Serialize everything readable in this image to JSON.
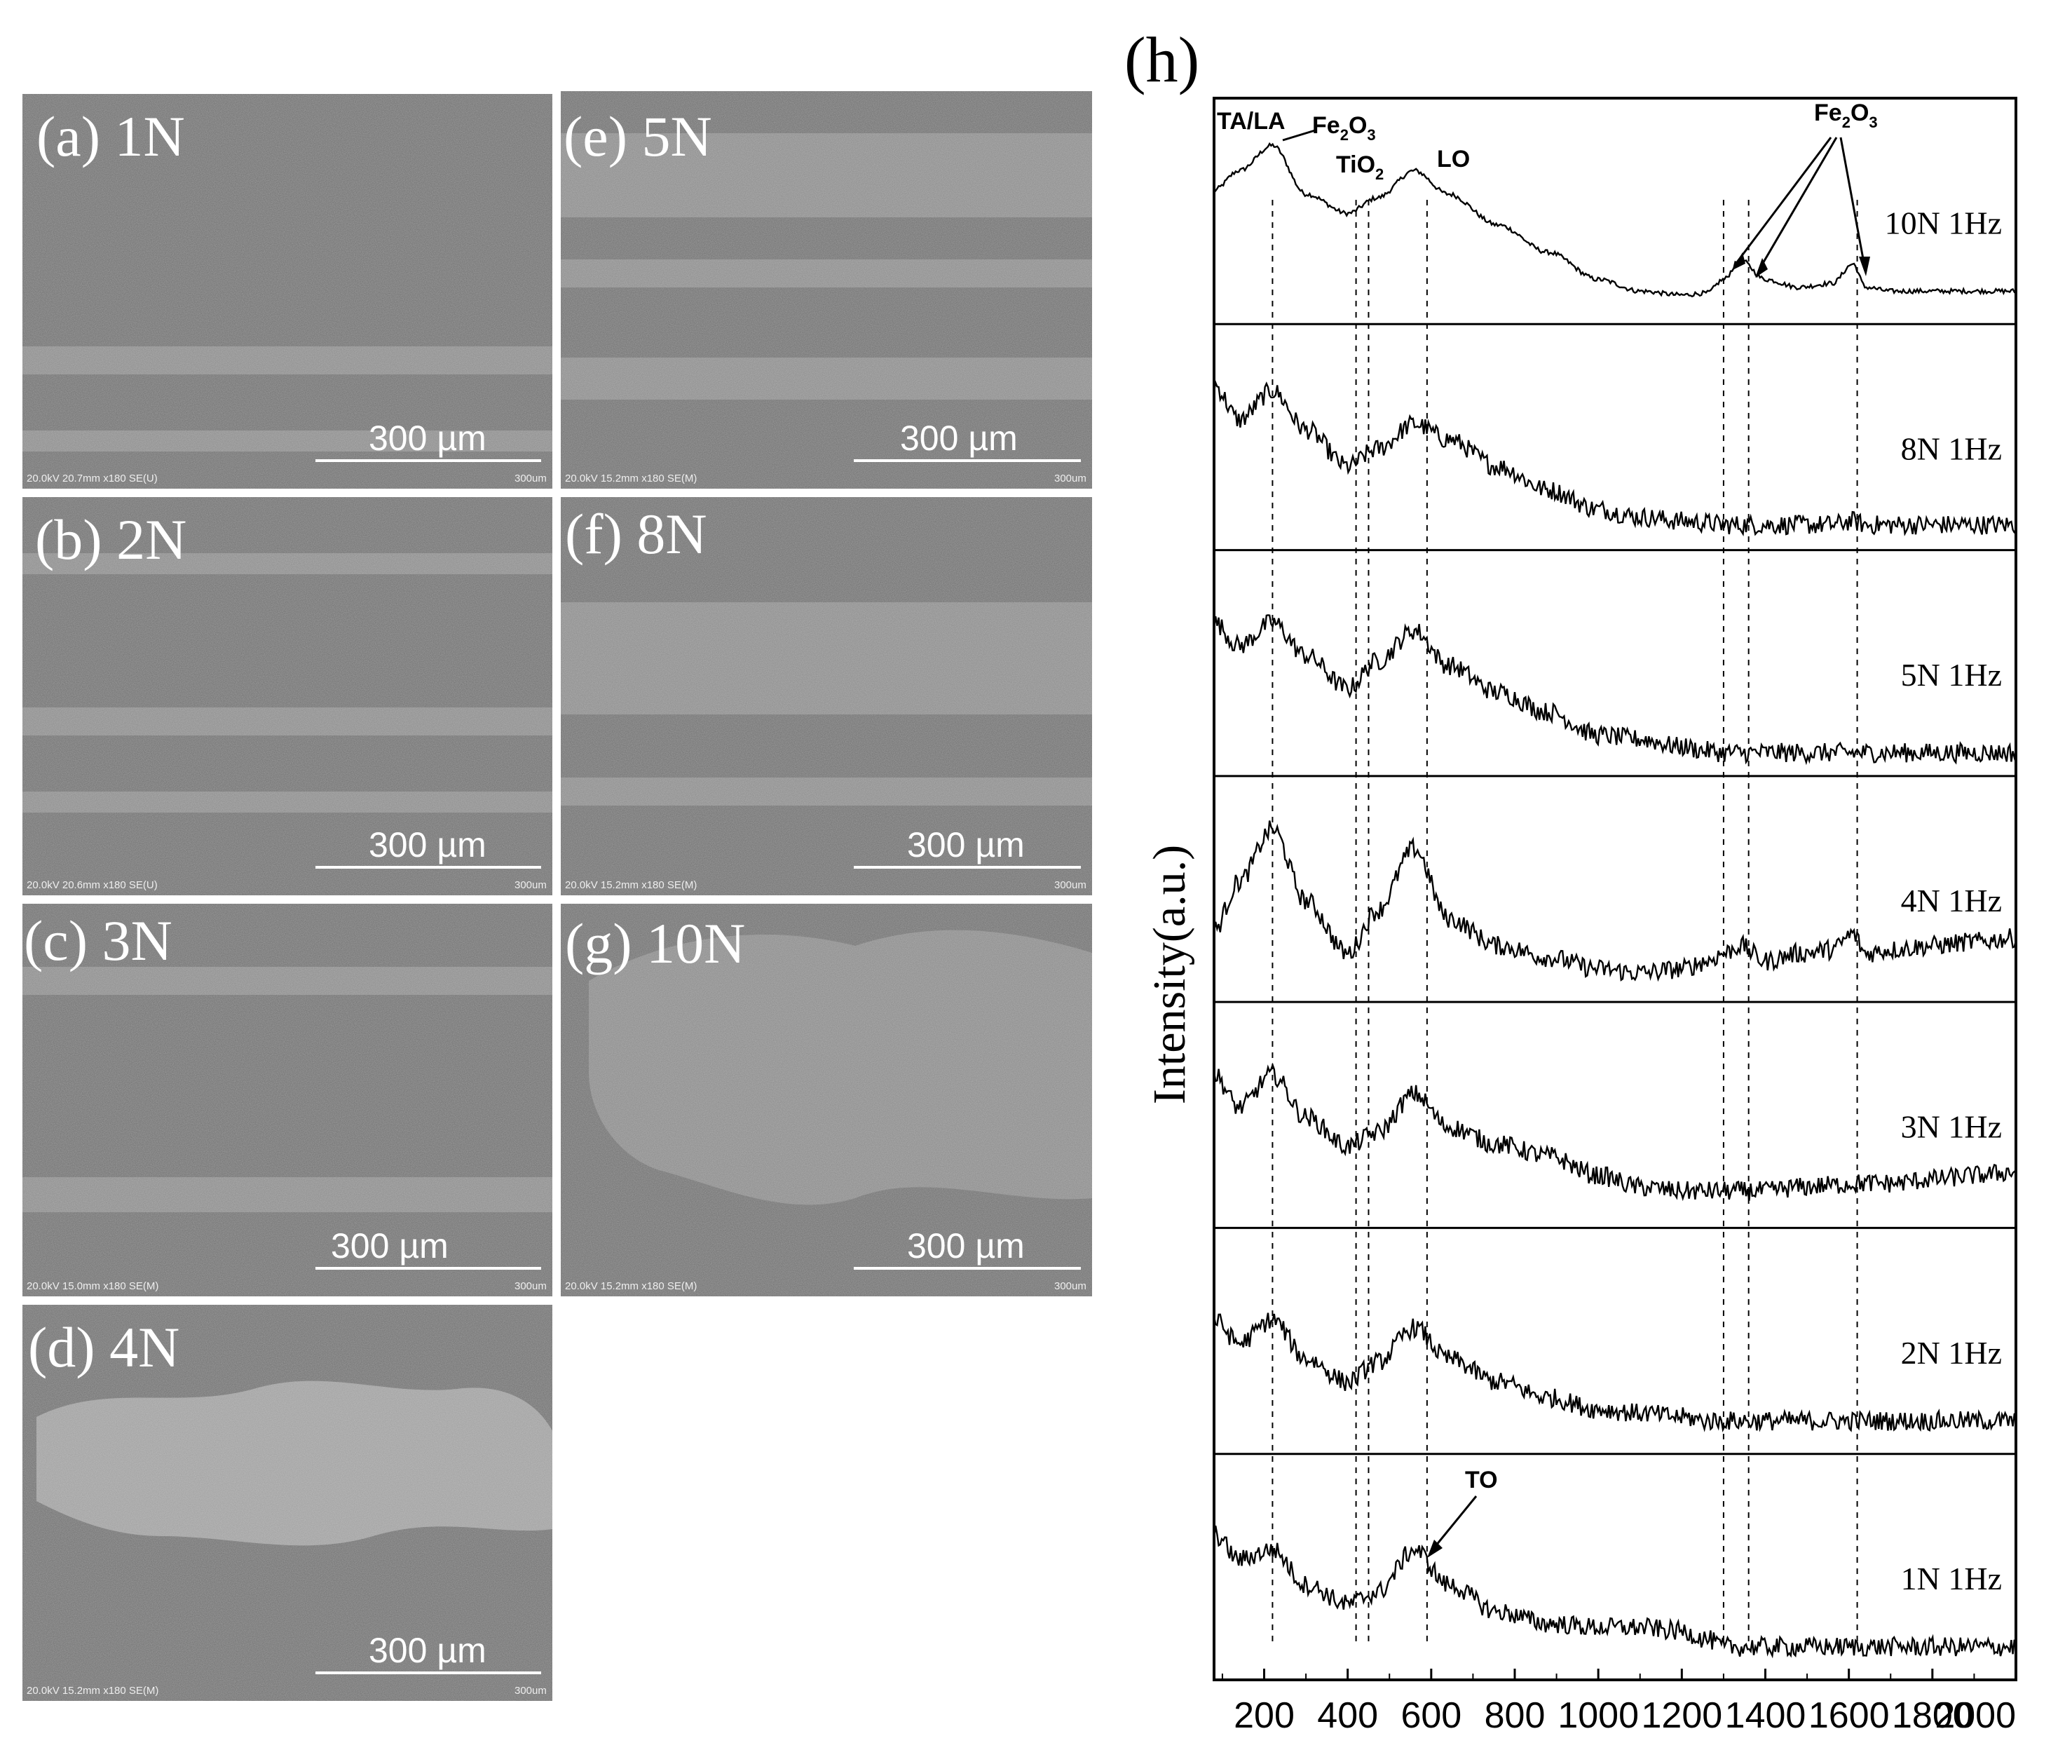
{
  "sem_panels": [
    {
      "label": "(a) 1N",
      "scale": "300 µm",
      "footer": "20.0kV 20.7mm x180 SE(U)",
      "footer_right": "300um"
    },
    {
      "label": "(b) 2N",
      "scale": "300 µm",
      "footer": "20.0kV 20.6mm x180 SE(U)",
      "footer_right": "300um"
    },
    {
      "label": "(c) 3N",
      "scale": "300 µm",
      "footer": "20.0kV 15.0mm x180 SE(M)",
      "footer_right": "300um"
    },
    {
      "label": "(d) 4N",
      "scale": "300 µm",
      "footer": "20.0kV 15.2mm x180 SE(M)",
      "footer_right": "300um"
    },
    {
      "label": "(e) 5N",
      "scale": "300 µm",
      "footer": "20.0kV 15.2mm x180 SE(M)",
      "footer_right": "300um"
    },
    {
      "label": "(f) 8N",
      "scale": "300 µm",
      "footer": "20.0kV 15.2mm x180 SE(M)",
      "footer_right": "300um"
    },
    {
      "label": "(g) 10N",
      "scale": "300 µm",
      "footer": "20.0kV 15.2mm x180 SE(M)",
      "footer_right": "300um"
    }
  ],
  "colors": {
    "sem_background": "#7a7a7a",
    "sem_light": "#a8a8a8",
    "sem_dark": "#5e5e5e",
    "trace": "#000000"
  },
  "raman": {
    "panel_label": "(h)",
    "ylabel": "Intensity(a.u.)",
    "tick_labels": [
      "200",
      "400",
      "600",
      "800",
      "1000",
      "1200",
      "1400",
      "1600",
      "1800",
      "2000"
    ],
    "annotations": {
      "tala": "TA/LA",
      "fe2o3_top_main": "Fe",
      "fe2o3_top_sub1": "2",
      "fe2o3_top_mid": "O",
      "fe2o3_top_sub2": "3",
      "tio2_main": "TiO",
      "tio2_sub": "2",
      "lo": "LO",
      "fe2o3_right_main": "Fe",
      "fe2o3_right_sub1": "2",
      "fe2o3_right_mid": "O",
      "fe2o3_right_sub2": "3",
      "to": "TO"
    }
  },
  "chart_data": {
    "type": "line",
    "title": "",
    "xlabel": "",
    "ylabel": "Intensity(a.u.)",
    "xlim": [
      80,
      2000
    ],
    "x_ticks": [
      200,
      400,
      600,
      800,
      1000,
      1200,
      1400,
      1600,
      1800,
      2000
    ],
    "reference_lines_x": [
      220,
      420,
      450,
      590,
      1300,
      1360,
      1620
    ],
    "series": [
      {
        "name": "10N 1Hz",
        "x": [
          80,
          140,
          220,
          300,
          400,
          470,
          560,
          640,
          760,
          880,
          1000,
          1100,
          1200,
          1260,
          1300,
          1340,
          1400,
          1480,
          1560,
          1610,
          1640,
          1700,
          1800,
          1900,
          2000
        ],
        "y": [
          0.62,
          0.72,
          0.85,
          0.6,
          0.5,
          0.58,
          0.72,
          0.6,
          0.44,
          0.3,
          0.16,
          0.1,
          0.08,
          0.09,
          0.16,
          0.26,
          0.16,
          0.12,
          0.14,
          0.24,
          0.12,
          0.1,
          0.1,
          0.1,
          0.1
        ]
      },
      {
        "name": "8N 1Hz",
        "x": [
          80,
          140,
          220,
          300,
          400,
          470,
          560,
          640,
          760,
          880,
          1000,
          1100,
          1200,
          1260,
          1300,
          1340,
          1400,
          1480,
          1560,
          1610,
          1640,
          1700,
          1800,
          1900,
          2000
        ],
        "y": [
          0.78,
          0.6,
          0.75,
          0.55,
          0.36,
          0.45,
          0.58,
          0.5,
          0.36,
          0.24,
          0.14,
          0.1,
          0.08,
          0.07,
          0.06,
          0.06,
          0.06,
          0.06,
          0.06,
          0.08,
          0.06,
          0.06,
          0.06,
          0.06,
          0.06
        ]
      },
      {
        "name": "5N 1Hz",
        "x": [
          80,
          140,
          220,
          300,
          400,
          470,
          560,
          640,
          760,
          880,
          1000,
          1100,
          1200,
          1260,
          1300,
          1340,
          1400,
          1480,
          1560,
          1610,
          1640,
          1700,
          1800,
          1900,
          2000
        ],
        "y": [
          0.72,
          0.6,
          0.72,
          0.55,
          0.38,
          0.52,
          0.68,
          0.5,
          0.36,
          0.26,
          0.14,
          0.12,
          0.08,
          0.06,
          0.05,
          0.05,
          0.05,
          0.05,
          0.05,
          0.05,
          0.05,
          0.05,
          0.05,
          0.05,
          0.05
        ]
      },
      {
        "name": "4N 1Hz",
        "x": [
          80,
          140,
          220,
          300,
          400,
          470,
          560,
          640,
          760,
          880,
          1000,
          1100,
          1200,
          1260,
          1300,
          1340,
          1400,
          1480,
          1560,
          1610,
          1640,
          1700,
          1800,
          1900,
          2000
        ],
        "y": [
          0.3,
          0.55,
          0.82,
          0.45,
          0.18,
          0.4,
          0.72,
          0.36,
          0.22,
          0.16,
          0.1,
          0.08,
          0.1,
          0.14,
          0.18,
          0.22,
          0.14,
          0.18,
          0.2,
          0.28,
          0.18,
          0.2,
          0.22,
          0.24,
          0.26
        ]
      },
      {
        "name": "3N 1Hz",
        "x": [
          80,
          140,
          220,
          300,
          400,
          470,
          560,
          640,
          760,
          880,
          1000,
          1100,
          1200,
          1260,
          1300,
          1340,
          1400,
          1480,
          1560,
          1610,
          1640,
          1700,
          1800,
          1900,
          2000
        ],
        "y": [
          0.72,
          0.55,
          0.72,
          0.5,
          0.35,
          0.42,
          0.62,
          0.45,
          0.36,
          0.3,
          0.2,
          0.14,
          0.12,
          0.12,
          0.12,
          0.12,
          0.12,
          0.14,
          0.15,
          0.16,
          0.16,
          0.16,
          0.18,
          0.2,
          0.22
        ]
      },
      {
        "name": "2N 1Hz",
        "x": [
          80,
          140,
          220,
          300,
          400,
          470,
          560,
          640,
          760,
          880,
          1000,
          1100,
          1200,
          1260,
          1300,
          1340,
          1400,
          1480,
          1560,
          1610,
          1640,
          1700,
          1800,
          1900,
          2000
        ],
        "y": [
          0.62,
          0.5,
          0.62,
          0.42,
          0.3,
          0.4,
          0.58,
          0.42,
          0.3,
          0.22,
          0.16,
          0.14,
          0.12,
          0.1,
          0.1,
          0.1,
          0.1,
          0.1,
          0.1,
          0.1,
          0.1,
          0.1,
          0.1,
          0.1,
          0.1
        ]
      },
      {
        "name": "1N 1Hz",
        "x": [
          80,
          140,
          220,
          300,
          400,
          470,
          560,
          640,
          760,
          880,
          1000,
          1100,
          1200,
          1260,
          1300,
          1340,
          1400,
          1480,
          1560,
          1610,
          1640,
          1700,
          1800,
          1900,
          2000
        ],
        "y": [
          0.68,
          0.55,
          0.6,
          0.42,
          0.32,
          0.38,
          0.6,
          0.42,
          0.28,
          0.22,
          0.2,
          0.2,
          0.18,
          0.14,
          0.1,
          0.1,
          0.1,
          0.1,
          0.1,
          0.1,
          0.1,
          0.1,
          0.1,
          0.1,
          0.1
        ]
      }
    ]
  }
}
